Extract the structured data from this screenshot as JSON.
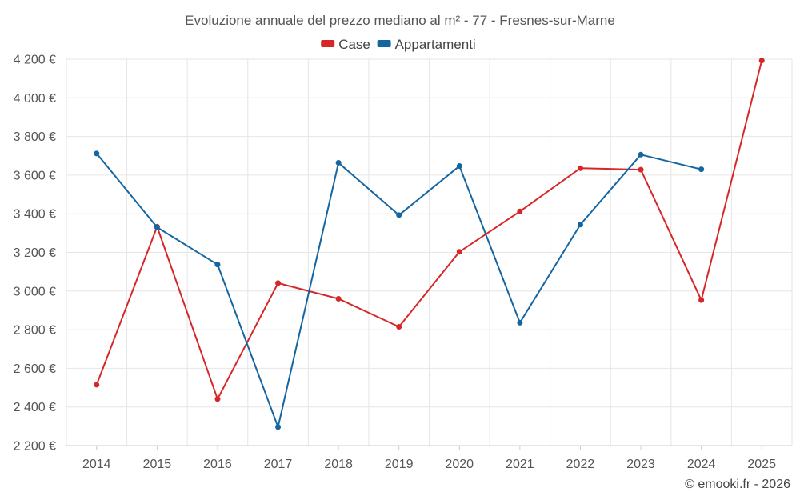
{
  "chart_data": {
    "type": "line",
    "title": "Evoluzione annuale del prezzo mediano al m² - 77 - Fresnes-sur-Marne",
    "xlabel": "",
    "ylabel": "",
    "categories": [
      "2014",
      "2015",
      "2016",
      "2017",
      "2018",
      "2019",
      "2020",
      "2021",
      "2022",
      "2023",
      "2024",
      "2025"
    ],
    "ylim": [
      2200,
      4200
    ],
    "yticks": [
      2200,
      2400,
      2600,
      2800,
      3000,
      3200,
      3400,
      3600,
      3800,
      4000,
      4200
    ],
    "ytick_labels": [
      "2 200 €",
      "2 400 €",
      "2 600 €",
      "2 800 €",
      "3 000 €",
      "3 200 €",
      "3 400 €",
      "3 600 €",
      "3 800 €",
      "4 000 €",
      "4 200 €"
    ],
    "grid": true,
    "legend_position": "top-center",
    "series": [
      {
        "name": "Case",
        "color": "#d62728",
        "values": [
          2515,
          3333,
          2441,
          3041,
          2960,
          2815,
          3203,
          3412,
          3636,
          3628,
          2953,
          4193
        ]
      },
      {
        "name": "Appartamenti",
        "color": "#1565a0",
        "values": [
          3712,
          3330,
          3137,
          2296,
          3664,
          3393,
          3647,
          2836,
          3344,
          3706,
          3630,
          null
        ]
      }
    ],
    "credit": "© emooki.fr - 2026"
  }
}
